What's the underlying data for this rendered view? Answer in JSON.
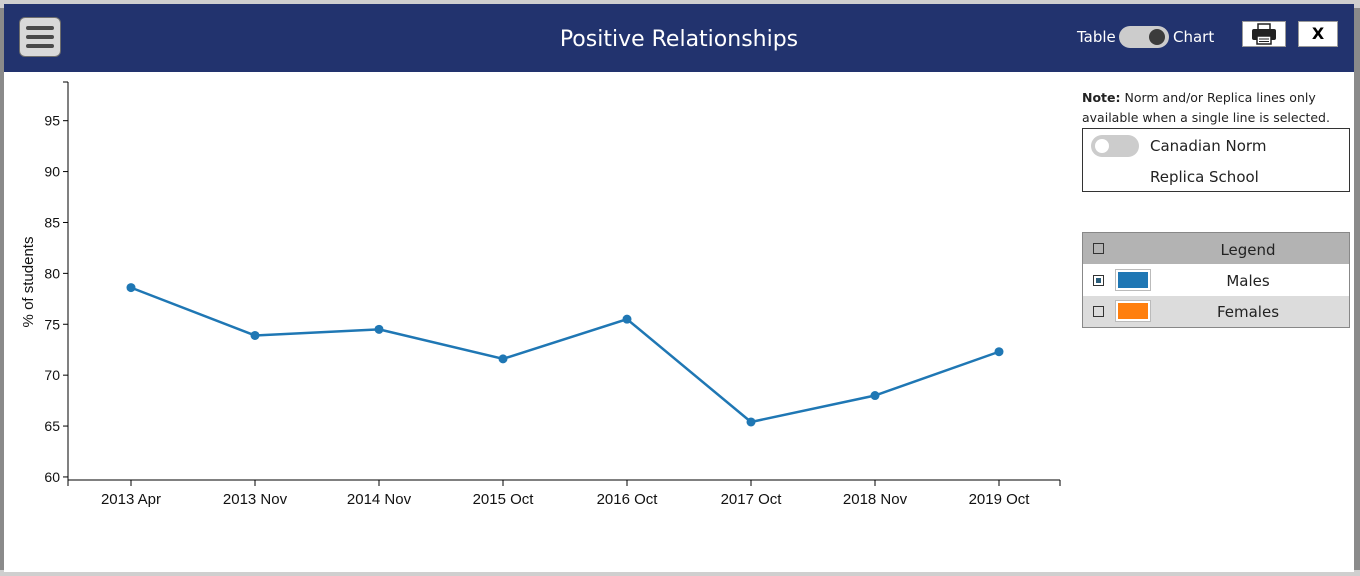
{
  "header": {
    "title": "Positive Relationships",
    "toggle_left": "Table",
    "toggle_right": "Chart",
    "close_label": "X"
  },
  "side": {
    "note_bold": "Note:",
    "note_text": " Norm and/or Replica lines only available when a single line is selected.",
    "norm_label": "Canadian Norm",
    "replica_label": "Replica School"
  },
  "legend": {
    "title": "Legend",
    "items": [
      {
        "label": "Males",
        "color": "#1f77b4",
        "checked": true
      },
      {
        "label": "Females",
        "color": "#ff7f0e",
        "checked": false
      }
    ]
  },
  "chart_data": {
    "type": "line",
    "title": "",
    "xlabel": "",
    "ylabel": "% of students",
    "categories": [
      "2013 Apr",
      "2013 Nov",
      "2014 Nov",
      "2015 Oct",
      "2016 Oct",
      "2017 Oct",
      "2018 Nov",
      "2019 Oct"
    ],
    "series": [
      {
        "name": "Males",
        "color": "#1f77b4",
        "values": [
          78.6,
          73.9,
          74.5,
          71.6,
          75.5,
          65.4,
          68.0,
          72.3
        ]
      }
    ],
    "yticks": [
      60,
      65,
      70,
      75,
      80,
      85,
      90,
      95
    ],
    "ylim": [
      59.7,
      98.8
    ],
    "grid": false
  }
}
